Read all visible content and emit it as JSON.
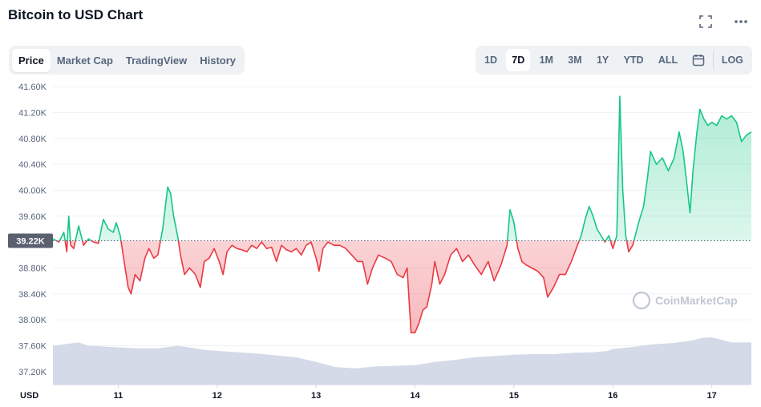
{
  "header": {
    "title": "Bitcoin to USD Chart"
  },
  "tabs": [
    {
      "label": "Price",
      "active": true
    },
    {
      "label": "Market Cap",
      "active": false
    },
    {
      "label": "TradingView",
      "active": false
    },
    {
      "label": "History",
      "active": false
    }
  ],
  "ranges": [
    {
      "label": "1D",
      "active": false
    },
    {
      "label": "7D",
      "active": true
    },
    {
      "label": "1M",
      "active": false
    },
    {
      "label": "3M",
      "active": false
    },
    {
      "label": "1Y",
      "active": false
    },
    {
      "label": "YTD",
      "active": false
    },
    {
      "label": "ALL",
      "active": false
    }
  ],
  "log_label": "LOG",
  "icons": {
    "fullscreen": "fullscreen-icon",
    "more": "more-icon",
    "calendar": "calendar-icon"
  },
  "watermark": "CoinMarketCap",
  "colors": {
    "up": "#16c784",
    "down": "#ea3943",
    "volume": "#cfd6e4",
    "ref": "#5a6070"
  },
  "chart_data": {
    "type": "line",
    "ylabel": "USD",
    "ylim": [
      37000,
      41700
    ],
    "yticks": [
      "41.60K",
      "41.20K",
      "40.80K",
      "40.40K",
      "40.00K",
      "39.60K",
      "38.80K",
      "38.40K",
      "38.00K",
      "37.60K",
      "37.20K"
    ],
    "ytick_values": [
      41600,
      41200,
      40800,
      40400,
      40000,
      39600,
      38800,
      38400,
      38000,
      37600,
      37200
    ],
    "xlim": [
      10.34,
      17.4
    ],
    "xticks": [
      "11",
      "12",
      "13",
      "14",
      "15",
      "16",
      "17"
    ],
    "xtick_values": [
      11,
      12,
      13,
      14,
      15,
      16,
      17
    ],
    "reference": {
      "value": 39220,
      "label": "39.22K"
    },
    "series": [
      {
        "values": [
          [
            10.34,
            39250
          ],
          [
            10.4,
            39200
          ],
          [
            10.45,
            39350
          ],
          [
            10.48,
            39050
          ],
          [
            10.5,
            39600
          ],
          [
            10.52,
            39150
          ],
          [
            10.55,
            39100
          ],
          [
            10.6,
            39450
          ],
          [
            10.65,
            39150
          ],
          [
            10.7,
            39250
          ],
          [
            10.75,
            39200
          ],
          [
            10.8,
            39180
          ],
          [
            10.85,
            39550
          ],
          [
            10.9,
            39400
          ],
          [
            10.95,
            39350
          ],
          [
            10.98,
            39500
          ],
          [
            11.02,
            39300
          ],
          [
            11.06,
            38900
          ],
          [
            11.1,
            38500
          ],
          [
            11.13,
            38400
          ],
          [
            11.17,
            38700
          ],
          [
            11.22,
            38600
          ],
          [
            11.27,
            38950
          ],
          [
            11.31,
            39100
          ],
          [
            11.36,
            38950
          ],
          [
            11.4,
            39000
          ],
          [
            11.45,
            39400
          ],
          [
            11.5,
            40050
          ],
          [
            11.53,
            39950
          ],
          [
            11.56,
            39600
          ],
          [
            11.6,
            39300
          ],
          [
            11.63,
            39000
          ],
          [
            11.67,
            38700
          ],
          [
            11.72,
            38800
          ],
          [
            11.78,
            38700
          ],
          [
            11.83,
            38500
          ],
          [
            11.87,
            38900
          ],
          [
            11.92,
            38950
          ],
          [
            11.97,
            39100
          ],
          [
            12.02,
            38900
          ],
          [
            12.06,
            38700
          ],
          [
            12.1,
            39050
          ],
          [
            12.15,
            39150
          ],
          [
            12.2,
            39100
          ],
          [
            12.25,
            39080
          ],
          [
            12.3,
            39050
          ],
          [
            12.35,
            39150
          ],
          [
            12.4,
            39100
          ],
          [
            12.45,
            39200
          ],
          [
            12.5,
            39100
          ],
          [
            12.55,
            39120
          ],
          [
            12.6,
            38900
          ],
          [
            12.65,
            39150
          ],
          [
            12.7,
            39080
          ],
          [
            12.75,
            39050
          ],
          [
            12.8,
            39100
          ],
          [
            12.85,
            39000
          ],
          [
            12.9,
            39150
          ],
          [
            12.95,
            39200
          ],
          [
            13.0,
            38950
          ],
          [
            13.03,
            38750
          ],
          [
            13.07,
            39100
          ],
          [
            13.12,
            39200
          ],
          [
            13.18,
            39150
          ],
          [
            13.24,
            39150
          ],
          [
            13.3,
            39100
          ],
          [
            13.36,
            39000
          ],
          [
            13.42,
            38900
          ],
          [
            13.47,
            38900
          ],
          [
            13.52,
            38550
          ],
          [
            13.57,
            38800
          ],
          [
            13.63,
            39000
          ],
          [
            13.7,
            38950
          ],
          [
            13.76,
            38900
          ],
          [
            13.82,
            38700
          ],
          [
            13.88,
            38650
          ],
          [
            13.92,
            38800
          ],
          [
            13.96,
            37800
          ],
          [
            14.0,
            37800
          ],
          [
            14.04,
            37950
          ],
          [
            14.08,
            38150
          ],
          [
            14.12,
            38200
          ],
          [
            14.17,
            38550
          ],
          [
            14.2,
            38900
          ],
          [
            14.25,
            38550
          ],
          [
            14.3,
            38700
          ],
          [
            14.36,
            39000
          ],
          [
            14.42,
            39100
          ],
          [
            14.48,
            38900
          ],
          [
            14.54,
            39000
          ],
          [
            14.6,
            38850
          ],
          [
            14.67,
            38700
          ],
          [
            14.74,
            38900
          ],
          [
            14.8,
            38600
          ],
          [
            14.87,
            38850
          ],
          [
            14.93,
            39150
          ],
          [
            14.96,
            39700
          ],
          [
            15.0,
            39500
          ],
          [
            15.04,
            39100
          ],
          [
            15.08,
            38900
          ],
          [
            15.12,
            38850
          ],
          [
            15.18,
            38800
          ],
          [
            15.24,
            38750
          ],
          [
            15.3,
            38650
          ],
          [
            15.34,
            38350
          ],
          [
            15.4,
            38500
          ],
          [
            15.46,
            38700
          ],
          [
            15.52,
            38700
          ],
          [
            15.58,
            38900
          ],
          [
            15.63,
            39100
          ],
          [
            15.68,
            39300
          ],
          [
            15.72,
            39550
          ],
          [
            15.76,
            39750
          ],
          [
            15.8,
            39600
          ],
          [
            15.84,
            39400
          ],
          [
            15.88,
            39300
          ],
          [
            15.92,
            39200
          ],
          [
            15.96,
            39300
          ],
          [
            16.0,
            39100
          ],
          [
            16.04,
            39300
          ],
          [
            16.07,
            41450
          ],
          [
            16.1,
            40000
          ],
          [
            16.13,
            39300
          ],
          [
            16.16,
            39050
          ],
          [
            16.2,
            39150
          ],
          [
            16.26,
            39500
          ],
          [
            16.31,
            39750
          ],
          [
            16.35,
            40200
          ],
          [
            16.38,
            40600
          ],
          [
            16.44,
            40400
          ],
          [
            16.5,
            40500
          ],
          [
            16.56,
            40300
          ],
          [
            16.62,
            40500
          ],
          [
            16.67,
            40900
          ],
          [
            16.71,
            40600
          ],
          [
            16.74,
            40200
          ],
          [
            16.78,
            39650
          ],
          [
            16.81,
            40300
          ],
          [
            16.85,
            40900
          ],
          [
            16.88,
            41250
          ],
          [
            16.92,
            41100
          ],
          [
            16.96,
            41000
          ],
          [
            17.0,
            41050
          ],
          [
            17.05,
            41000
          ],
          [
            17.1,
            41150
          ],
          [
            17.15,
            41100
          ],
          [
            17.2,
            41150
          ],
          [
            17.25,
            41050
          ],
          [
            17.3,
            40750
          ],
          [
            17.35,
            40850
          ],
          [
            17.4,
            40900
          ]
        ]
      },
      {
        "name": "",
        "values": [
          [
            10.34,
            37600
          ],
          [
            10.6,
            37650
          ],
          [
            10.7,
            37600
          ],
          [
            11.2,
            37560
          ],
          [
            11.4,
            37560
          ],
          [
            11.6,
            37600
          ],
          [
            11.9,
            37530
          ],
          [
            12.2,
            37500
          ],
          [
            12.4,
            37480
          ],
          [
            12.6,
            37450
          ],
          [
            12.8,
            37420
          ],
          [
            13.0,
            37350
          ],
          [
            13.2,
            37270
          ],
          [
            13.4,
            37250
          ],
          [
            13.6,
            37280
          ],
          [
            13.8,
            37290
          ],
          [
            14.0,
            37300
          ],
          [
            14.2,
            37350
          ],
          [
            14.4,
            37380
          ],
          [
            14.6,
            37420
          ],
          [
            14.8,
            37440
          ],
          [
            15.0,
            37460
          ],
          [
            15.2,
            37470
          ],
          [
            15.4,
            37470
          ],
          [
            15.6,
            37490
          ],
          [
            15.8,
            37500
          ],
          [
            15.95,
            37520
          ],
          [
            16.0,
            37550
          ],
          [
            16.2,
            37580
          ],
          [
            16.4,
            37620
          ],
          [
            16.6,
            37640
          ],
          [
            16.8,
            37680
          ],
          [
            16.9,
            37720
          ],
          [
            17.0,
            37730
          ],
          [
            17.1,
            37690
          ],
          [
            17.2,
            37650
          ],
          [
            17.4,
            37650
          ]
        ]
      }
    ]
  }
}
